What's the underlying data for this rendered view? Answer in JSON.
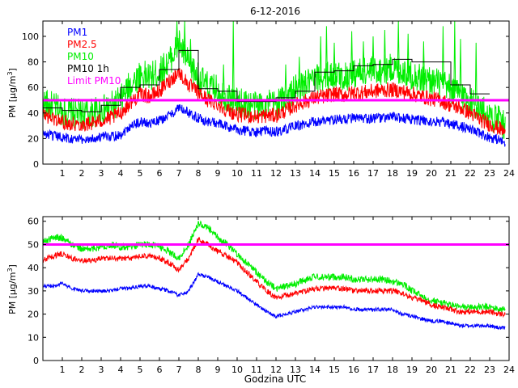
{
  "title": "6-12-2016",
  "chart_data": [
    {
      "type": "line",
      "ylabel_prefix": "PM [μg/m",
      "ylabel_sup": "3",
      "ylabel_suffix": "]",
      "xlabel": "",
      "xlim": [
        0,
        24
      ],
      "ylim": [
        0,
        112
      ],
      "xticks": [
        1,
        2,
        3,
        4,
        5,
        6,
        7,
        8,
        9,
        10,
        11,
        12,
        13,
        14,
        15,
        16,
        17,
        18,
        19,
        20,
        21,
        22,
        23,
        24
      ],
      "yticks": [
        0,
        20,
        40,
        60,
        80,
        100
      ],
      "colors": {
        "pm1": "#0000ff",
        "pm25": "#ff0000",
        "pm10": "#00ee00",
        "pm10_1h": "#000000",
        "limit": "#ff00ff"
      },
      "legend": {
        "placement": "top-left",
        "entries": [
          {
            "label": "PM1",
            "color": "#0000ff"
          },
          {
            "label": "PM2.5",
            "color": "#ff0000"
          },
          {
            "label": "PM10",
            "color": "#00ee00"
          },
          {
            "label": "PM10 1h",
            "color": "#000000"
          },
          {
            "label": "Limit PM10",
            "color": "#ff00ff"
          }
        ]
      },
      "limit": 50,
      "hour_points": [
        0,
        0.5,
        1,
        1.5,
        2,
        2.5,
        3,
        3.5,
        4,
        4.5,
        5,
        5.5,
        6,
        6.5,
        7,
        7.5,
        8,
        8.5,
        9,
        9.5,
        10,
        10.5,
        11,
        11.5,
        12,
        12.5,
        13,
        13.5,
        14,
        14.5,
        15,
        15.5,
        16,
        16.5,
        17,
        17.5,
        18,
        18.5,
        19,
        19.5,
        20,
        20.5,
        21,
        21.5,
        22,
        22.5,
        23,
        23.5,
        23.8
      ],
      "series": [
        {
          "name": "PM1",
          "noise": 4,
          "values": [
            24,
            22,
            21,
            20,
            19,
            20,
            21,
            22,
            23,
            30,
            33,
            32,
            34,
            38,
            44,
            40,
            36,
            33,
            32,
            29,
            27,
            26,
            25,
            26,
            25,
            27,
            30,
            31,
            33,
            34,
            35,
            35,
            36,
            35,
            36,
            36,
            37,
            36,
            35,
            34,
            33,
            33,
            31,
            30,
            27,
            24,
            21,
            19,
            16
          ]
        },
        {
          "name": "PM2.5",
          "noise": 6,
          "values": [
            39,
            36,
            33,
            32,
            31,
            32,
            34,
            36,
            40,
            48,
            55,
            53,
            57,
            65,
            72,
            62,
            56,
            50,
            47,
            42,
            39,
            38,
            37,
            38,
            38,
            42,
            46,
            49,
            52,
            53,
            55,
            54,
            56,
            56,
            57,
            58,
            58,
            57,
            55,
            53,
            51,
            50,
            46,
            44,
            40,
            35,
            31,
            28,
            25
          ]
        },
        {
          "name": "PM10",
          "noise": 12,
          "values": [
            48,
            45,
            41,
            40,
            39,
            40,
            42,
            45,
            50,
            62,
            70,
            68,
            72,
            80,
            95,
            78,
            68,
            60,
            58,
            52,
            48,
            47,
            46,
            47,
            47,
            52,
            58,
            62,
            66,
            68,
            70,
            68,
            71,
            72,
            73,
            74,
            75,
            73,
            70,
            67,
            65,
            63,
            58,
            55,
            50,
            43,
            38,
            34,
            30
          ]
        }
      ],
      "spikes": [
        {
          "x": 6.9,
          "y": 112
        },
        {
          "x": 7.3,
          "y": 112
        },
        {
          "x": 7.6,
          "y": 98
        },
        {
          "x": 9.3,
          "y": 78
        },
        {
          "x": 9.8,
          "y": 112
        },
        {
          "x": 12.5,
          "y": 78
        },
        {
          "x": 13.2,
          "y": 84
        },
        {
          "x": 14.3,
          "y": 100
        },
        {
          "x": 14.6,
          "y": 108
        },
        {
          "x": 15.0,
          "y": 95
        },
        {
          "x": 15.9,
          "y": 104
        },
        {
          "x": 16.5,
          "y": 96
        },
        {
          "x": 17.0,
          "y": 100
        },
        {
          "x": 17.6,
          "y": 105
        },
        {
          "x": 18.3,
          "y": 112
        },
        {
          "x": 18.8,
          "y": 102
        },
        {
          "x": 19.6,
          "y": 96
        },
        {
          "x": 20.6,
          "y": 108
        },
        {
          "x": 21.2,
          "y": 112
        },
        {
          "x": 21.5,
          "y": 98
        },
        {
          "x": 22.3,
          "y": 95
        }
      ],
      "hourly_step": [
        44,
        42,
        41,
        46,
        60,
        62,
        74,
        89,
        59,
        57,
        49,
        49,
        52,
        57,
        72,
        73,
        77,
        78,
        82,
        80,
        80,
        62,
        55
      ]
    },
    {
      "type": "line",
      "ylabel_prefix": "PM [μg/m",
      "ylabel_sup": "3",
      "ylabel_suffix": "]",
      "xlabel": "Godzina UTC",
      "xlim": [
        0,
        24
      ],
      "ylim": [
        0,
        62
      ],
      "xticks": [
        1,
        2,
        3,
        4,
        5,
        6,
        7,
        8,
        9,
        10,
        11,
        12,
        13,
        14,
        15,
        16,
        17,
        18,
        19,
        20,
        21,
        22,
        23,
        24
      ],
      "yticks": [
        0,
        10,
        20,
        30,
        40,
        50,
        60
      ],
      "colors": {
        "pm1": "#0000ff",
        "pm25": "#ff0000",
        "pm10": "#00ee00",
        "limit": "#ff00ff"
      },
      "limit": 50,
      "hour_points": [
        0,
        0.5,
        1,
        1.5,
        2,
        2.5,
        3,
        3.5,
        4,
        4.5,
        5,
        5.5,
        6,
        6.5,
        7,
        7.5,
        8,
        8.5,
        9,
        9.5,
        10,
        10.5,
        11,
        11.5,
        12,
        12.5,
        13,
        13.5,
        14,
        14.5,
        15,
        15.5,
        16,
        16.5,
        17,
        17.5,
        18,
        18.5,
        19,
        19.5,
        20,
        20.5,
        21,
        21.5,
        22,
        22.5,
        23,
        23.5,
        23.8
      ],
      "series": [
        {
          "name": "PM1",
          "noise": 0.8,
          "values": [
            32,
            32,
            33,
            31,
            30,
            30,
            30,
            30,
            31,
            31,
            32,
            32,
            31,
            30,
            28,
            30,
            37,
            36,
            34,
            32,
            30,
            27,
            24,
            21,
            19,
            20,
            21,
            22,
            23,
            23,
            23,
            23,
            22,
            22,
            22,
            22,
            22,
            20,
            19,
            18,
            17,
            17,
            16,
            15,
            15,
            15,
            15,
            14,
            14
          ]
        },
        {
          "name": "PM2.5",
          "noise": 1.2,
          "values": [
            43,
            45,
            46,
            44,
            43,
            43,
            44,
            44,
            44,
            44,
            45,
            45,
            44,
            42,
            39,
            44,
            52,
            50,
            47,
            45,
            42,
            38,
            34,
            30,
            27,
            28,
            29,
            30,
            31,
            31,
            31,
            31,
            30,
            30,
            30,
            30,
            30,
            29,
            27,
            26,
            24,
            23,
            22,
            21,
            21,
            21,
            21,
            20,
            20
          ]
        },
        {
          "name": "PM10",
          "noise": 1.5,
          "values": [
            51,
            53,
            53,
            50,
            48,
            48,
            49,
            50,
            49,
            49,
            50,
            50,
            49,
            47,
            44,
            50,
            59,
            57,
            53,
            50,
            46,
            42,
            38,
            34,
            31,
            32,
            33,
            35,
            36,
            36,
            36,
            36,
            35,
            35,
            35,
            35,
            34,
            33,
            30,
            28,
            26,
            25,
            24,
            23,
            23,
            23,
            23,
            22,
            22
          ]
        }
      ]
    }
  ]
}
